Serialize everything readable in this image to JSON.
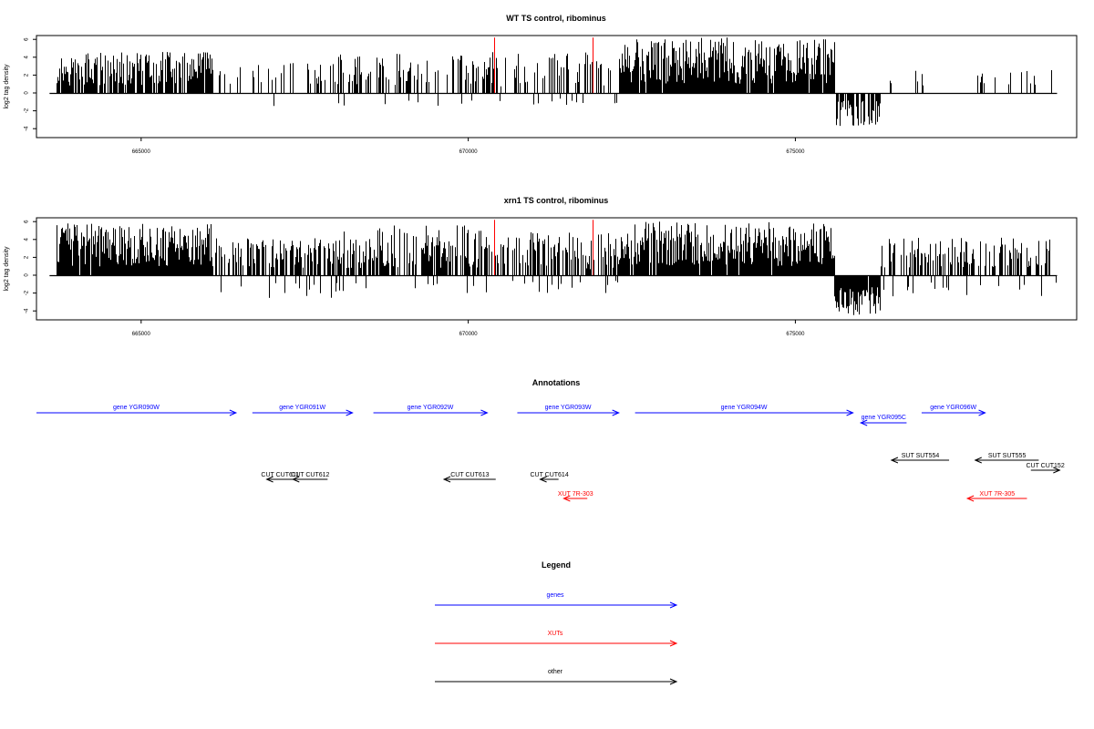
{
  "chart_data": [
    {
      "type": "bar",
      "title": "WT TS control, ribominus",
      "ylabel": "log2 tag density",
      "xlim": [
        663400,
        679300
      ],
      "ylim": [
        -5,
        6.8
      ],
      "x_ticks": [
        665000,
        670000,
        675000
      ],
      "y_ticks": [
        -4,
        -2,
        0,
        2,
        4,
        6
      ],
      "grid": false,
      "markers": [
        {
          "x": 670400,
          "color": "#ff0000"
        },
        {
          "x": 671900,
          "color": "#ff0000"
        }
      ],
      "segments": [
        {
          "x0": 663700,
          "x1": 666100,
          "min": 0.8,
          "max": 4.6,
          "neg_min": 0,
          "neg_max": 0,
          "prob": 0.85
        },
        {
          "x0": 666100,
          "x1": 668000,
          "min": 0.8,
          "max": 3.4,
          "neg_min": 0.8,
          "neg_max": 1.6,
          "prob": 0.22
        },
        {
          "x0": 668000,
          "x1": 670300,
          "min": 0.8,
          "max": 4.4,
          "neg_min": 0.6,
          "neg_max": 1.6,
          "prob": 0.38
        },
        {
          "x0": 670300,
          "x1": 672300,
          "min": 0.6,
          "max": 4.6,
          "neg_min": 0.6,
          "neg_max": 1.4,
          "prob": 0.32
        },
        {
          "x0": 672300,
          "x1": 675600,
          "min": 1.0,
          "max": 6.2,
          "neg_min": 0,
          "neg_max": 0,
          "prob": 0.95
        },
        {
          "x0": 675600,
          "x1": 676300,
          "min": 0,
          "max": 0,
          "neg_min": 0.8,
          "neg_max": 3.8,
          "prob": 0.7
        },
        {
          "x0": 676300,
          "x1": 679000,
          "min": 0.8,
          "max": 2.6,
          "neg_min": 0.8,
          "neg_max": 2.1,
          "prob": 0.07
        }
      ]
    },
    {
      "type": "bar",
      "title": "xrn1 TS control, ribominus",
      "ylabel": "log2 tag density",
      "xlim": [
        663400,
        679300
      ],
      "ylim": [
        -5,
        6.8
      ],
      "x_ticks": [
        665000,
        670000,
        675000
      ],
      "y_ticks": [
        -4,
        -2,
        0,
        2,
        4,
        6
      ],
      "grid": false,
      "markers": [
        {
          "x": 670400,
          "color": "#ff0000"
        },
        {
          "x": 671900,
          "color": "#ff0000"
        }
      ],
      "segments": [
        {
          "x0": 663700,
          "x1": 666100,
          "min": 1.0,
          "max": 5.8,
          "neg_min": 0,
          "neg_max": 0,
          "prob": 0.97
        },
        {
          "x0": 666100,
          "x1": 668000,
          "min": 0.8,
          "max": 4.2,
          "neg_min": 0.8,
          "neg_max": 2.6,
          "prob": 0.55
        },
        {
          "x0": 668000,
          "x1": 670300,
          "min": 0.8,
          "max": 5.6,
          "neg_min": 0.6,
          "neg_max": 2.2,
          "prob": 0.7
        },
        {
          "x0": 670300,
          "x1": 672300,
          "min": 0.6,
          "max": 4.8,
          "neg_min": 0.6,
          "neg_max": 2.0,
          "prob": 0.55
        },
        {
          "x0": 672300,
          "x1": 675600,
          "min": 1.0,
          "max": 6.0,
          "neg_min": 0,
          "neg_max": 0,
          "prob": 0.97
        },
        {
          "x0": 675600,
          "x1": 676300,
          "min": 0,
          "max": 0,
          "neg_min": 1.2,
          "neg_max": 4.6,
          "prob": 0.95
        },
        {
          "x0": 676300,
          "x1": 679000,
          "min": 0.8,
          "max": 4.2,
          "neg_min": 0.8,
          "neg_max": 2.6,
          "prob": 0.5
        }
      ]
    }
  ],
  "annotations": {
    "title": "Annotations",
    "features": [
      {
        "name": "gene YGR090W",
        "color": "#0000ff",
        "strand": "+",
        "start": 663400,
        "end": 666450,
        "row": 0
      },
      {
        "name": "gene YGR091W",
        "color": "#0000ff",
        "strand": "+",
        "start": 666700,
        "end": 668230,
        "row": 0
      },
      {
        "name": "gene YGR092W",
        "color": "#0000ff",
        "strand": "+",
        "start": 668550,
        "end": 670290,
        "row": 0
      },
      {
        "name": "gene YGR093W",
        "color": "#0000ff",
        "strand": "+",
        "start": 670750,
        "end": 672300,
        "row": 0
      },
      {
        "name": "gene YGR094W",
        "color": "#0000ff",
        "strand": "+",
        "start": 672550,
        "end": 675880,
        "row": 0
      },
      {
        "name": "gene YGR095C",
        "color": "#0000ff",
        "strand": "-",
        "start": 676000,
        "end": 676700,
        "row": 1
      },
      {
        "name": "gene YGR096W",
        "color": "#0000ff",
        "strand": "+",
        "start": 676930,
        "end": 677900,
        "row": 0
      },
      {
        "name": "SUT SUT554",
        "color": "#000000",
        "strand": "-",
        "start": 676470,
        "end": 677350,
        "row": 2
      },
      {
        "name": "SUT SUT555",
        "color": "#000000",
        "strand": "-",
        "start": 677750,
        "end": 678720,
        "row": 2
      },
      {
        "name": "CUT CUT152",
        "color": "#000000",
        "strand": "+",
        "start": 678600,
        "end": 679040,
        "row": 3
      },
      {
        "name": "CUT CUT611",
        "color": "#000000",
        "strand": "-",
        "start": 666920,
        "end": 667330,
        "row": 4
      },
      {
        "name": "CUT CUT612",
        "color": "#000000",
        "strand": "-",
        "start": 667320,
        "end": 667850,
        "row": 4
      },
      {
        "name": "CUT CUT613",
        "color": "#000000",
        "strand": "-",
        "start": 669630,
        "end": 670420,
        "row": 4
      },
      {
        "name": "CUT CUT614",
        "color": "#000000",
        "strand": "-",
        "start": 671100,
        "end": 671380,
        "row": 4
      },
      {
        "name": "XUT 7R-303",
        "color": "#ff0000",
        "strand": "-",
        "start": 671460,
        "end": 671820,
        "row": 5
      },
      {
        "name": "XUT 7R-305",
        "color": "#ff0000",
        "strand": "-",
        "start": 677630,
        "end": 678540,
        "row": 5
      }
    ]
  },
  "legend": {
    "title": "Legend",
    "items": [
      {
        "label": "genes",
        "color": "#0000ff"
      },
      {
        "label": "XUTs",
        "color": "#ff0000"
      },
      {
        "label": "other",
        "color": "#000000"
      }
    ]
  }
}
